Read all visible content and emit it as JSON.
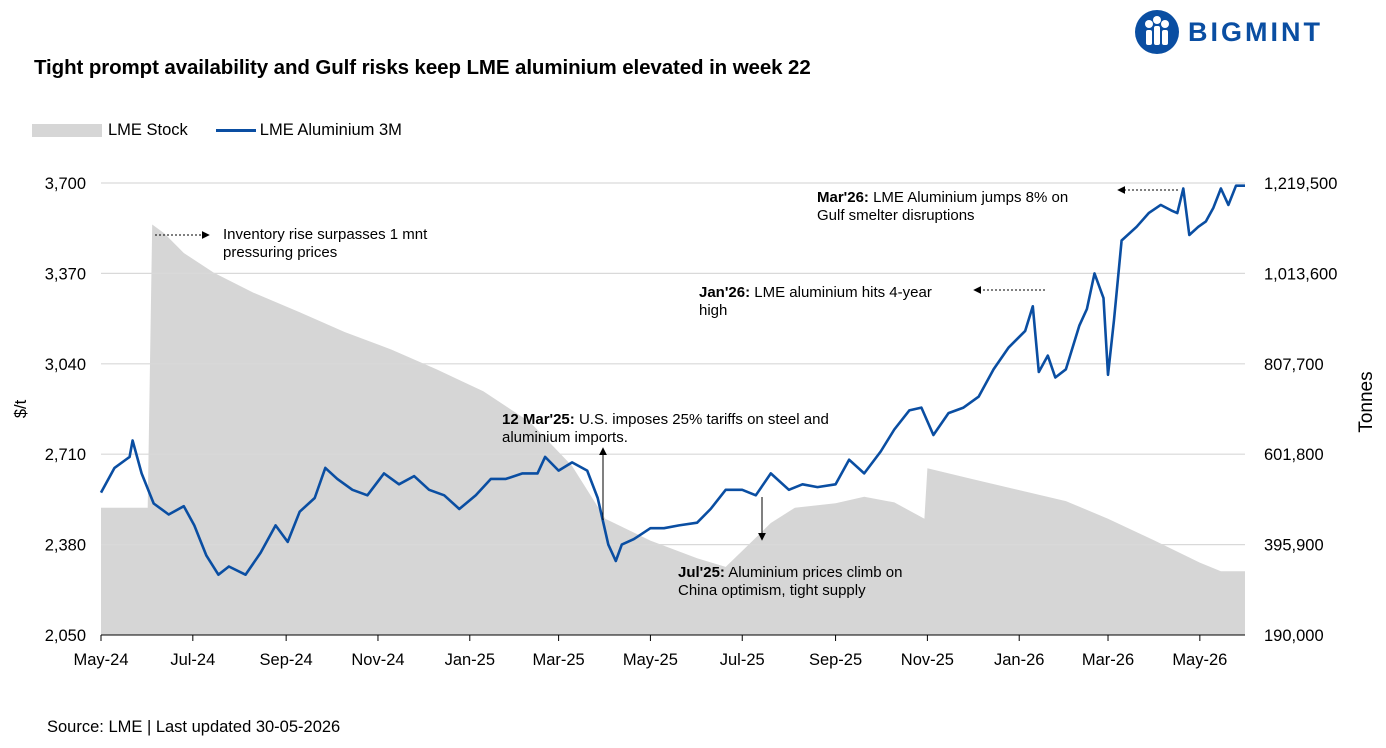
{
  "title": "Tight prompt availability and Gulf risks keep LME aluminium elevated in week 22",
  "logo": {
    "text": "BIGMINT",
    "icon": "bigmint-people-icon",
    "color": "#0a4ea2"
  },
  "source": "Source: LME | Last updated 30-05-2026",
  "chart_data": {
    "type": "line",
    "secondary_type": "area",
    "ylabel": "$/t",
    "y2label": "Tonnes",
    "ylim": [
      2050,
      3700
    ],
    "y2lim": [
      190000,
      1219500
    ],
    "yticks": [
      "3,700",
      "3,370",
      "3,040",
      "2,710",
      "2,380",
      "2,050"
    ],
    "yticks_values": [
      3700,
      3370,
      3040,
      2710,
      2380,
      2050
    ],
    "y2ticks": [
      "1,219,500",
      "1,013,600",
      "807,700",
      "601,800",
      "395,900",
      "190,000"
    ],
    "y2ticks_values": [
      1219500,
      1013600,
      807700,
      601800,
      395900,
      190000
    ],
    "xticks": [
      "May-24",
      "Jul-24",
      "Sep-24",
      "Nov-24",
      "Jan-25",
      "Mar-25",
      "May-25",
      "Jul-25",
      "Sep-25",
      "Nov-25",
      "Jan-26",
      "Mar-26",
      "May-26"
    ],
    "grid": true,
    "legend": "top-left",
    "series": [
      {
        "name": "LME Stock",
        "axis": "right",
        "color": "#d6d6d6",
        "points": [
          [
            "2024-05-01",
            480000
          ],
          [
            "2024-06-01",
            480000
          ],
          [
            "2024-06-04",
            1125000
          ],
          [
            "2024-06-12",
            1105000
          ],
          [
            "2024-06-25",
            1060000
          ],
          [
            "2024-07-15",
            1015000
          ],
          [
            "2024-08-10",
            970000
          ],
          [
            "2024-09-10",
            925000
          ],
          [
            "2024-10-10",
            880000
          ],
          [
            "2024-11-10",
            840000
          ],
          [
            "2024-12-10",
            795000
          ],
          [
            "2025-01-10",
            745000
          ],
          [
            "2025-02-10",
            675000
          ],
          [
            "2025-03-10",
            575000
          ],
          [
            "2025-04-01",
            455000
          ],
          [
            "2025-05-01",
            405000
          ],
          [
            "2025-06-01",
            365000
          ],
          [
            "2025-06-20",
            345000
          ],
          [
            "2025-07-05",
            395000
          ],
          [
            "2025-07-20",
            445000
          ],
          [
            "2025-08-05",
            480000
          ],
          [
            "2025-09-01",
            490000
          ],
          [
            "2025-09-20",
            505000
          ],
          [
            "2025-10-10",
            492000
          ],
          [
            "2025-10-30",
            455000
          ],
          [
            "2025-11-01",
            570000
          ],
          [
            "2025-12-01",
            545000
          ],
          [
            "2026-01-01",
            520000
          ],
          [
            "2026-02-01",
            495000
          ],
          [
            "2026-03-01",
            455000
          ],
          [
            "2026-04-01",
            405000
          ],
          [
            "2026-05-01",
            355000
          ],
          [
            "2026-05-15",
            335000
          ],
          [
            "2026-05-31",
            335000
          ]
        ]
      },
      {
        "name": "LME Aluminium 3M",
        "axis": "left",
        "color": "#0a4ea2",
        "points": [
          [
            "2024-05-01",
            2570
          ],
          [
            "2024-05-10",
            2660
          ],
          [
            "2024-05-20",
            2700
          ],
          [
            "2024-05-22",
            2760
          ],
          [
            "2024-05-28",
            2640
          ],
          [
            "2024-06-05",
            2530
          ],
          [
            "2024-06-15",
            2490
          ],
          [
            "2024-06-25",
            2520
          ],
          [
            "2024-07-02",
            2450
          ],
          [
            "2024-07-10",
            2340
          ],
          [
            "2024-07-18",
            2270
          ],
          [
            "2024-07-25",
            2300
          ],
          [
            "2024-08-05",
            2270
          ],
          [
            "2024-08-15",
            2350
          ],
          [
            "2024-08-25",
            2450
          ],
          [
            "2024-09-02",
            2390
          ],
          [
            "2024-09-10",
            2500
          ],
          [
            "2024-09-20",
            2550
          ],
          [
            "2024-09-27",
            2660
          ],
          [
            "2024-10-05",
            2620
          ],
          [
            "2024-10-15",
            2580
          ],
          [
            "2024-10-25",
            2560
          ],
          [
            "2024-11-05",
            2640
          ],
          [
            "2024-11-15",
            2600
          ],
          [
            "2024-11-25",
            2630
          ],
          [
            "2024-12-05",
            2580
          ],
          [
            "2024-12-15",
            2560
          ],
          [
            "2024-12-25",
            2510
          ],
          [
            "2025-01-05",
            2560
          ],
          [
            "2025-01-15",
            2620
          ],
          [
            "2025-01-25",
            2620
          ],
          [
            "2025-02-05",
            2640
          ],
          [
            "2025-02-15",
            2640
          ],
          [
            "2025-02-20",
            2700
          ],
          [
            "2025-03-01",
            2650
          ],
          [
            "2025-03-10",
            2680
          ],
          [
            "2025-03-20",
            2650
          ],
          [
            "2025-03-27",
            2550
          ],
          [
            "2025-04-03",
            2380
          ],
          [
            "2025-04-08",
            2320
          ],
          [
            "2025-04-12",
            2380
          ],
          [
            "2025-04-20",
            2400
          ],
          [
            "2025-05-01",
            2440
          ],
          [
            "2025-05-10",
            2440
          ],
          [
            "2025-05-20",
            2450
          ],
          [
            "2025-06-01",
            2460
          ],
          [
            "2025-06-10",
            2510
          ],
          [
            "2025-06-20",
            2580
          ],
          [
            "2025-07-01",
            2580
          ],
          [
            "2025-07-10",
            2560
          ],
          [
            "2025-07-20",
            2640
          ],
          [
            "2025-08-01",
            2580
          ],
          [
            "2025-08-10",
            2600
          ],
          [
            "2025-08-20",
            2590
          ],
          [
            "2025-09-01",
            2600
          ],
          [
            "2025-09-10",
            2690
          ],
          [
            "2025-09-20",
            2640
          ],
          [
            "2025-10-01",
            2720
          ],
          [
            "2025-10-10",
            2800
          ],
          [
            "2025-10-20",
            2870
          ],
          [
            "2025-10-28",
            2880
          ],
          [
            "2025-11-05",
            2780
          ],
          [
            "2025-11-15",
            2860
          ],
          [
            "2025-11-25",
            2880
          ],
          [
            "2025-12-05",
            2920
          ],
          [
            "2025-12-15",
            3020
          ],
          [
            "2025-12-25",
            3100
          ],
          [
            "2026-01-05",
            3160
          ],
          [
            "2026-01-10",
            3250
          ],
          [
            "2026-01-14",
            3010
          ],
          [
            "2026-01-20",
            3070
          ],
          [
            "2026-01-25",
            2990
          ],
          [
            "2026-02-01",
            3020
          ],
          [
            "2026-02-10",
            3180
          ],
          [
            "2026-02-15",
            3240
          ],
          [
            "2026-02-20",
            3370
          ],
          [
            "2026-02-26",
            3280
          ],
          [
            "2026-03-01",
            3000
          ],
          [
            "2026-03-05",
            3200
          ],
          [
            "2026-03-10",
            3490
          ],
          [
            "2026-03-20",
            3540
          ],
          [
            "2026-03-28",
            3590
          ],
          [
            "2026-04-05",
            3620
          ],
          [
            "2026-04-12",
            3600
          ],
          [
            "2026-04-16",
            3590
          ],
          [
            "2026-04-20",
            3680
          ],
          [
            "2026-04-24",
            3510
          ],
          [
            "2026-04-30",
            3540
          ],
          [
            "2026-05-05",
            3560
          ],
          [
            "2026-05-10",
            3610
          ],
          [
            "2026-05-15",
            3680
          ],
          [
            "2026-05-20",
            3620
          ],
          [
            "2026-05-25",
            3690
          ],
          [
            "2026-05-31",
            3690
          ]
        ]
      }
    ],
    "annotations": [
      {
        "bold": "",
        "lines": [
          "Inventory rise surpasses 1 mnt",
          "pressuring prices"
        ]
      },
      {
        "bold": "12 Mar'25:",
        "lines": [
          " U.S. imposes 25% tariffs on steel and",
          "aluminium imports."
        ]
      },
      {
        "bold": "Jul'25:",
        "lines": [
          " Aluminium prices climb on",
          "China optimism, tight supply"
        ]
      },
      {
        "bold": "Jan'26:",
        "lines": [
          " LME aluminium hits 4-year",
          "high"
        ]
      },
      {
        "bold": "Mar'26:",
        "lines": [
          " LME Aluminium jumps 8% on",
          "Gulf smelter disruptions"
        ]
      }
    ]
  }
}
